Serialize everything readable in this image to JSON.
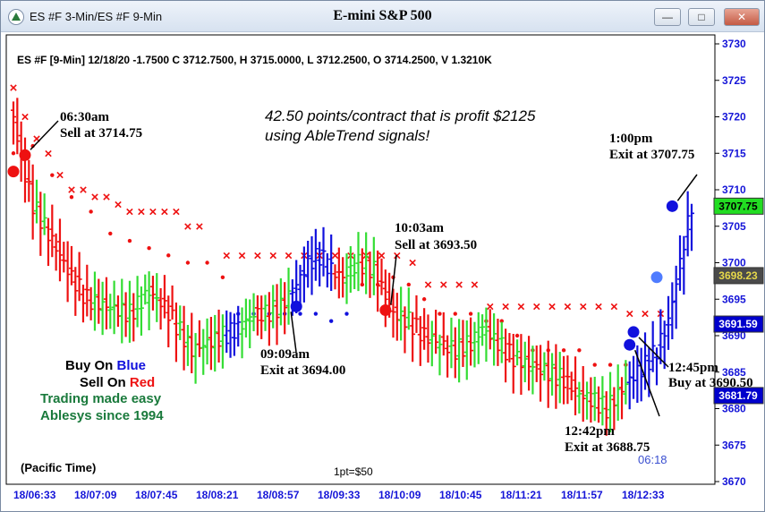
{
  "window": {
    "title": "ES #F 3-Min/ES #F 9-Min",
    "chart_title": "E-mini S&P 500",
    "buttons": {
      "minimize": "—",
      "maximize": "□",
      "close": "✕"
    }
  },
  "header": {
    "symbol_line": "ES #F [9-Min] 12/18/20  -1.7500 C 3712.7500, H 3715.0000, L 3712.2500, O 3714.2500, V 1.3210K"
  },
  "headline": {
    "line1": "42.50 points/contract that is profit $2125",
    "line2": "using AbleTrend signals!"
  },
  "annotations": [
    {
      "time": "06:30am",
      "action": "Sell at 3714.75"
    },
    {
      "time": "09:09am",
      "action": "Exit at 3694.00"
    },
    {
      "time": "10:03am",
      "action": "Sell at 3693.50"
    },
    {
      "time": "12:42pm",
      "action": "Exit at 3688.75"
    },
    {
      "time": "12:45pm",
      "action": "Buy at 3690.50"
    },
    {
      "time": "1:00pm",
      "action": "Exit at 3707.75"
    }
  ],
  "legend": {
    "buy_prefix": "Buy On ",
    "buy_color_word": "Blue",
    "sell_prefix": "Sell On ",
    "sell_color_word": "Red",
    "slogan1": "Trading made easy",
    "slogan2": "Ablesys since 1994"
  },
  "footer": {
    "timezone": "(Pacific Time)",
    "point_value": "1pt=$50",
    "bar_timer": "06:18"
  },
  "price_badges": [
    {
      "label": "3707.75",
      "value": 3707.75,
      "bg": "#22dd22",
      "fg": "#000000"
    },
    {
      "label": "3698.23",
      "value": 3698.23,
      "bg": "#4a4a4a",
      "fg": "#e6d84a"
    },
    {
      "label": "3691.59",
      "value": 3691.59,
      "bg": "#0000cc",
      "fg": "#ffffff"
    },
    {
      "label": "3681.79",
      "value": 3681.79,
      "bg": "#0000cc",
      "fg": "#ffffff"
    }
  ],
  "colors": {
    "up_bar": "#33dd33",
    "down_bar": "#ee1111",
    "buy_bar": "#1111dd",
    "stop_marker": "#ee1111",
    "axis_text": "#1515d8"
  },
  "chart_data": {
    "type": "bar",
    "style": "OHLC price bars with trend-colored signals",
    "ylim": [
      3670,
      3730
    ],
    "y_ticks": [
      3670,
      3675,
      3680,
      3685,
      3690,
      3695,
      3700,
      3705,
      3710,
      3715,
      3720,
      3725,
      3730
    ],
    "x_tick_labels": [
      "18/06:33",
      "18/07:09",
      "18/07:45",
      "18/08:21",
      "18/08:57",
      "18/09:33",
      "18/10:09",
      "18/10:45",
      "18/11:21",
      "18/11:57",
      "18/12:33"
    ],
    "grid": false,
    "signals": [
      {
        "type": "sell",
        "price": 3714.75,
        "label": "06:30am"
      },
      {
        "type": "exit",
        "price": 3694.0,
        "label": "09:09am"
      },
      {
        "type": "sell",
        "price": 3693.5,
        "label": "10:03am"
      },
      {
        "type": "exit",
        "price": 3688.75,
        "label": "12:42pm"
      },
      {
        "type": "buy",
        "price": 3690.5,
        "label": "12:45pm"
      },
      {
        "type": "exit",
        "price": 3707.75,
        "label": "1:00pm"
      }
    ],
    "price_path": [
      [
        0,
        3720
      ],
      [
        4,
        3714
      ],
      [
        10,
        3708
      ],
      [
        20,
        3703
      ],
      [
        30,
        3698
      ],
      [
        38,
        3695
      ],
      [
        48,
        3694
      ],
      [
        60,
        3693
      ],
      [
        70,
        3696
      ],
      [
        78,
        3694
      ],
      [
        85,
        3691
      ],
      [
        92,
        3688
      ],
      [
        100,
        3689
      ],
      [
        108,
        3690
      ],
      [
        116,
        3691
      ],
      [
        124,
        3693
      ],
      [
        130,
        3693
      ],
      [
        138,
        3694
      ],
      [
        146,
        3697
      ],
      [
        152,
        3700
      ],
      [
        158,
        3701
      ],
      [
        164,
        3699
      ],
      [
        170,
        3698
      ],
      [
        178,
        3700
      ],
      [
        186,
        3699
      ],
      [
        196,
        3693
      ],
      [
        204,
        3692
      ],
      [
        212,
        3690
      ],
      [
        220,
        3689
      ],
      [
        228,
        3688
      ],
      [
        236,
        3689
      ],
      [
        242,
        3691
      ],
      [
        250,
        3689
      ],
      [
        258,
        3687
      ],
      [
        266,
        3686
      ],
      [
        276,
        3685
      ],
      [
        284,
        3684
      ],
      [
        292,
        3682
      ],
      [
        300,
        3681
      ],
      [
        306,
        3680
      ],
      [
        312,
        3682
      ],
      [
        318,
        3684
      ],
      [
        326,
        3686
      ],
      [
        332,
        3688
      ],
      [
        338,
        3692
      ],
      [
        344,
        3700
      ],
      [
        350,
        3708
      ]
    ],
    "sell_stop_x": [
      [
        0,
        3724
      ],
      [
        6,
        3720
      ],
      [
        12,
        3717
      ],
      [
        18,
        3715
      ],
      [
        24,
        3712
      ],
      [
        30,
        3710
      ],
      [
        36,
        3710
      ],
      [
        42,
        3709
      ],
      [
        48,
        3709
      ],
      [
        54,
        3708
      ],
      [
        60,
        3707
      ],
      [
        66,
        3707
      ],
      [
        72,
        3707
      ],
      [
        78,
        3707
      ],
      [
        84,
        3707
      ],
      [
        90,
        3705
      ],
      [
        96,
        3705
      ],
      [
        110,
        3701
      ],
      [
        118,
        3701
      ],
      [
        126,
        3701
      ],
      [
        134,
        3701
      ],
      [
        142,
        3701
      ],
      [
        150,
        3701
      ],
      [
        158,
        3701
      ],
      [
        166,
        3701
      ],
      [
        174,
        3701
      ],
      [
        182,
        3701
      ],
      [
        190,
        3701
      ],
      [
        198,
        3701
      ],
      [
        206,
        3700
      ],
      [
        214,
        3697
      ],
      [
        222,
        3697
      ],
      [
        230,
        3697
      ],
      [
        238,
        3697
      ],
      [
        246,
        3694
      ],
      [
        254,
        3694
      ],
      [
        262,
        3694
      ],
      [
        270,
        3694
      ],
      [
        278,
        3694
      ],
      [
        286,
        3694
      ],
      [
        294,
        3694
      ],
      [
        302,
        3694
      ],
      [
        310,
        3694
      ],
      [
        318,
        3693
      ],
      [
        326,
        3693
      ],
      [
        334,
        3693
      ]
    ],
    "support_dots": [
      [
        0,
        3715
      ],
      [
        10,
        3716
      ],
      [
        20,
        3712
      ],
      [
        30,
        3709
      ],
      [
        40,
        3707
      ],
      [
        50,
        3704
      ],
      [
        60,
        3703
      ],
      [
        70,
        3702
      ],
      [
        80,
        3701
      ],
      [
        90,
        3700
      ],
      [
        100,
        3700
      ],
      [
        108,
        3698
      ],
      [
        116,
        3693
      ],
      [
        124,
        3693
      ],
      [
        132,
        3693
      ],
      [
        140,
        3693
      ],
      [
        148,
        3693
      ],
      [
        156,
        3693
      ],
      [
        164,
        3692
      ],
      [
        172,
        3693
      ],
      [
        180,
        3697
      ],
      [
        188,
        3697
      ],
      [
        196,
        3698
      ],
      [
        204,
        3697
      ],
      [
        212,
        3695
      ],
      [
        220,
        3693
      ],
      [
        228,
        3693
      ],
      [
        236,
        3693
      ],
      [
        244,
        3692
      ],
      [
        252,
        3692
      ],
      [
        260,
        3690
      ],
      [
        268,
        3688
      ],
      [
        276,
        3688
      ],
      [
        284,
        3688
      ],
      [
        292,
        3688
      ],
      [
        300,
        3686
      ],
      [
        308,
        3686
      ],
      [
        316,
        3686
      ]
    ]
  }
}
